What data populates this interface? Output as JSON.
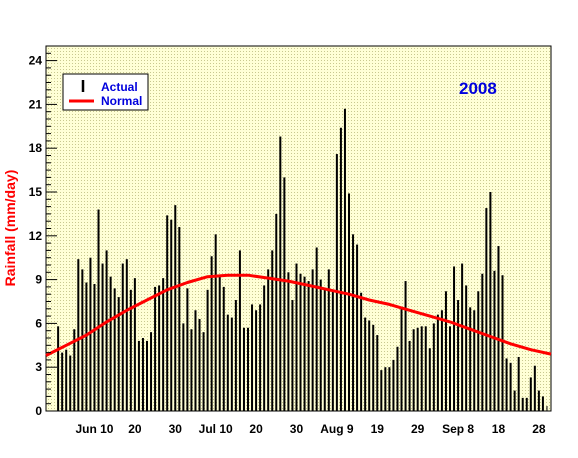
{
  "chart_data": {
    "type": "bar",
    "title": "2008",
    "ylabel": "Rainfall (mm/day)",
    "xlabel": "",
    "ylim": [
      0,
      25
    ],
    "yticks": [
      0,
      3,
      6,
      9,
      12,
      15,
      18,
      21,
      24
    ],
    "xticks": [
      {
        "day": 10,
        "label": "Jun 10"
      },
      {
        "day": 20,
        "label": "20"
      },
      {
        "day": 30,
        "label": "30"
      },
      {
        "day": 40,
        "label": "Jul 10"
      },
      {
        "day": 50,
        "label": "20"
      },
      {
        "day": 60,
        "label": "30"
      },
      {
        "day": 70,
        "label": "Aug 9"
      },
      {
        "day": 80,
        "label": "19"
      },
      {
        "day": 90,
        "label": "29"
      },
      {
        "day": 100,
        "label": "Sep 8"
      },
      {
        "day": 110,
        "label": "18"
      },
      {
        "day": 120,
        "label": "28"
      }
    ],
    "grid": false,
    "legend_position": "top-left",
    "series": [
      {
        "name": "Actual",
        "type": "bar",
        "color": "#000000",
        "x": [
          1,
          2,
          3,
          4,
          5,
          6,
          7,
          8,
          9,
          10,
          11,
          12,
          13,
          14,
          15,
          16,
          17,
          18,
          19,
          20,
          21,
          22,
          23,
          24,
          25,
          26,
          27,
          28,
          29,
          30,
          31,
          32,
          33,
          34,
          35,
          36,
          37,
          38,
          39,
          40,
          41,
          42,
          43,
          44,
          45,
          46,
          47,
          48,
          49,
          50,
          51,
          52,
          53,
          54,
          55,
          56,
          57,
          58,
          59,
          60,
          61,
          62,
          63,
          64,
          65,
          66,
          67,
          68,
          69,
          70,
          71,
          72,
          73,
          74,
          75,
          76,
          77,
          78,
          79,
          80,
          81,
          82,
          83,
          84,
          85,
          86,
          87,
          88,
          89,
          90,
          91,
          92,
          93,
          94,
          95,
          96,
          97,
          98,
          99,
          100,
          101,
          102,
          103,
          104,
          105,
          106,
          107,
          108,
          109,
          110,
          111,
          112,
          113,
          114,
          115,
          116,
          117,
          118,
          119,
          120,
          121
        ],
        "values": [
          5.8,
          4.0,
          4.2,
          3.8,
          5.6,
          10.4,
          9.7,
          8.8,
          10.5,
          8.7,
          13.8,
          10.1,
          11.0,
          9.2,
          8.4,
          7.8,
          10.1,
          10.4,
          8.3,
          9.1,
          4.8,
          5.0,
          4.8,
          5.4,
          8.5,
          8.6,
          9.1,
          13.4,
          13.1,
          14.1,
          12.6,
          6.0,
          8.4,
          5.6,
          6.9,
          6.3,
          5.4,
          8.3,
          10.6,
          12.1,
          9.3,
          8.5,
          6.6,
          6.4,
          7.6,
          11.0,
          5.7,
          5.7,
          7.3,
          6.9,
          7.3,
          8.6,
          9.7,
          11.0,
          13.5,
          18.8,
          16.0,
          9.5,
          7.6,
          10.1,
          9.4,
          9.2,
          8.9,
          9.7,
          11.2,
          9.0,
          8.3,
          9.7,
          8.3,
          17.6,
          19.4,
          20.7,
          14.9,
          12.1,
          11.4,
          8.1,
          6.4,
          6.2,
          5.9,
          5.2,
          2.8,
          3.0,
          3.0,
          3.5,
          4.4,
          7.0,
          8.9,
          4.8,
          5.6,
          5.7,
          5.8,
          5.8,
          4.3,
          6.0,
          6.6,
          6.9,
          8.2,
          5.8,
          9.9,
          7.6,
          10.1,
          8.6,
          7.1,
          6.9,
          8.2,
          9.4,
          13.9,
          15.0,
          9.6,
          11.3,
          9.3,
          3.6,
          3.3,
          1.4,
          3.7,
          0.9,
          0.9,
          2.3,
          3.1,
          1.4,
          1.0
        ]
      },
      {
        "name": "Normal",
        "type": "line",
        "color": "#ff0000",
        "x": [
          -2,
          3,
          8,
          13,
          18,
          23,
          28,
          33,
          38,
          43,
          48,
          53,
          58,
          63,
          68,
          73,
          78,
          83,
          88,
          93,
          98,
          103,
          108,
          113,
          118,
          123
        ],
        "values": [
          3.8,
          4.5,
          5.2,
          6.1,
          6.9,
          7.6,
          8.3,
          8.8,
          9.2,
          9.3,
          9.3,
          9.1,
          8.9,
          8.6,
          8.3,
          8.0,
          7.6,
          7.3,
          6.9,
          6.5,
          6.1,
          5.6,
          5.1,
          4.6,
          4.2,
          3.9
        ]
      }
    ]
  }
}
